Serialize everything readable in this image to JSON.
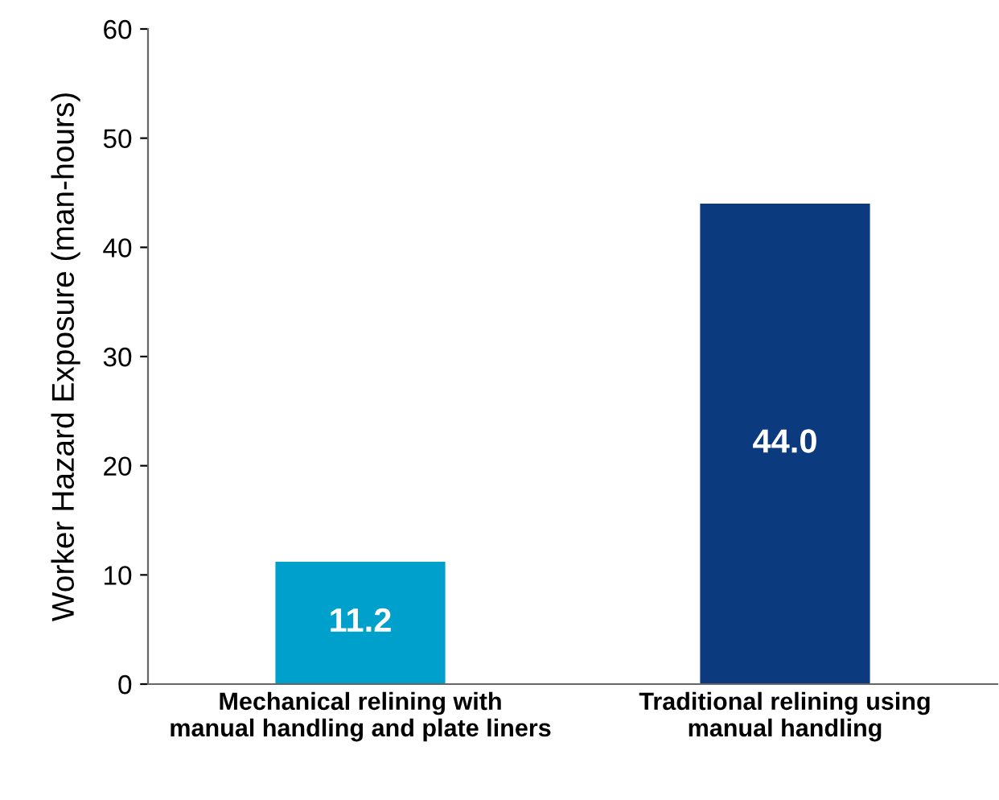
{
  "chart_data": {
    "type": "bar",
    "ylabel": "Worker Hazard Exposure (man-hours)",
    "categories": [
      "Mechanical relining with\nmanual handling and plate liners",
      "Traditional relining using\nmanual handling"
    ],
    "values": [
      11.2,
      44.0
    ],
    "colors": [
      "#00a0cc",
      "#0b3a7e"
    ],
    "value_labels": [
      "11.2",
      "44.0"
    ],
    "ylim": [
      0,
      60
    ],
    "yticks": [
      0,
      10,
      20,
      30,
      40,
      50,
      60
    ],
    "grid": false,
    "legend": false
  }
}
